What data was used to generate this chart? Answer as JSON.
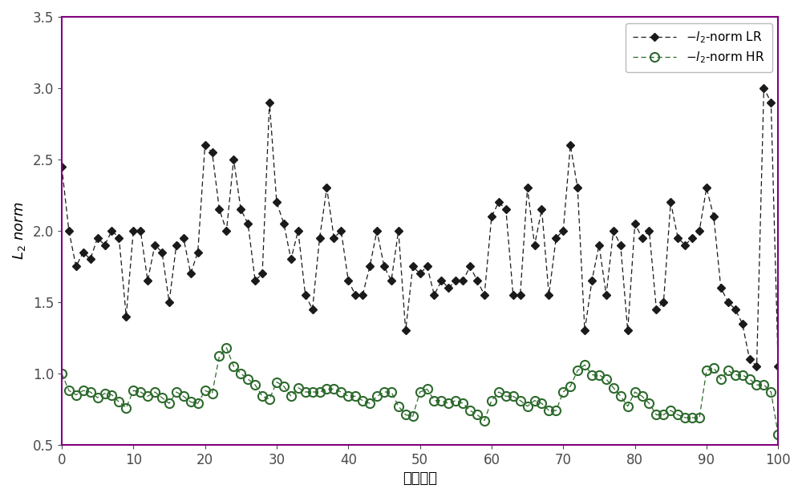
{
  "lr_values": [
    2.45,
    2.0,
    1.75,
    1.85,
    1.8,
    1.95,
    1.9,
    2.0,
    1.95,
    1.4,
    2.0,
    2.0,
    1.65,
    1.9,
    1.85,
    1.5,
    1.9,
    1.95,
    1.7,
    1.85,
    2.6,
    2.55,
    2.15,
    2.0,
    2.5,
    2.15,
    2.05,
    1.65,
    1.7,
    2.9,
    2.2,
    2.05,
    1.8,
    2.0,
    1.55,
    1.45,
    1.95,
    2.3,
    1.95,
    2.0,
    1.65,
    1.55,
    1.55,
    1.75,
    2.0,
    1.75,
    1.65,
    2.0,
    1.3,
    1.75,
    1.7,
    1.75,
    1.55,
    1.65,
    1.6,
    1.65,
    1.65,
    1.75,
    1.65,
    1.55,
    2.1,
    2.2,
    2.15,
    1.55,
    1.55,
    2.3,
    1.9,
    2.15,
    1.55,
    1.95,
    2.0,
    2.6,
    2.3,
    1.3,
    1.65,
    1.9,
    1.55,
    2.0,
    1.9,
    1.3,
    2.05,
    1.95,
    2.0,
    1.45,
    1.5,
    2.2,
    1.95,
    1.9,
    1.95,
    2.0,
    2.3,
    2.1,
    1.6,
    1.5,
    1.45,
    1.35,
    1.1,
    1.05,
    3.0,
    2.9,
    1.05
  ],
  "hr_values": [
    1.0,
    0.88,
    0.85,
    0.88,
    0.87,
    0.83,
    0.86,
    0.85,
    0.8,
    0.76,
    0.88,
    0.87,
    0.84,
    0.87,
    0.83,
    0.79,
    0.87,
    0.84,
    0.8,
    0.79,
    0.88,
    0.86,
    1.12,
    1.18,
    1.05,
    1.0,
    0.96,
    0.92,
    0.84,
    0.82,
    0.94,
    0.91,
    0.84,
    0.9,
    0.87,
    0.87,
    0.87,
    0.89,
    0.89,
    0.87,
    0.84,
    0.84,
    0.81,
    0.79,
    0.84,
    0.87,
    0.87,
    0.77,
    0.71,
    0.7,
    0.87,
    0.89,
    0.81,
    0.81,
    0.79,
    0.81,
    0.79,
    0.74,
    0.71,
    0.67,
    0.81,
    0.87,
    0.84,
    0.84,
    0.81,
    0.77,
    0.81,
    0.79,
    0.74,
    0.74,
    0.87,
    0.91,
    1.02,
    1.06,
    0.99,
    0.99,
    0.96,
    0.9,
    0.84,
    0.77,
    0.87,
    0.84,
    0.79,
    0.71,
    0.71,
    0.74,
    0.71,
    0.69,
    0.69,
    0.69,
    1.02,
    1.04,
    0.96,
    1.02,
    0.99,
    0.99,
    0.96,
    0.92,
    0.92,
    0.87,
    0.57
  ],
  "xlabel": "样本标号",
  "ylabel": "$\\mathit{L}_2$ norm",
  "xlim": [
    0,
    100
  ],
  "ylim": [
    0.5,
    3.5
  ],
  "yticks": [
    0.5,
    1.0,
    1.5,
    2.0,
    2.5,
    3.0,
    3.5
  ],
  "xticks": [
    0,
    10,
    20,
    30,
    40,
    50,
    60,
    70,
    80,
    90,
    100
  ],
  "lr_label": "$-l_2$-norm LR",
  "hr_label": "$-l_2$-norm HR",
  "lr_color": "#1a1a1a",
  "hr_color": "#2d6a2d",
  "line_style": "--",
  "lr_marker": "D",
  "hr_marker": "o",
  "background_color": "#ffffff",
  "legend_loc": "upper right",
  "spine_color": "#800080",
  "tick_color": "#4a4a4a"
}
